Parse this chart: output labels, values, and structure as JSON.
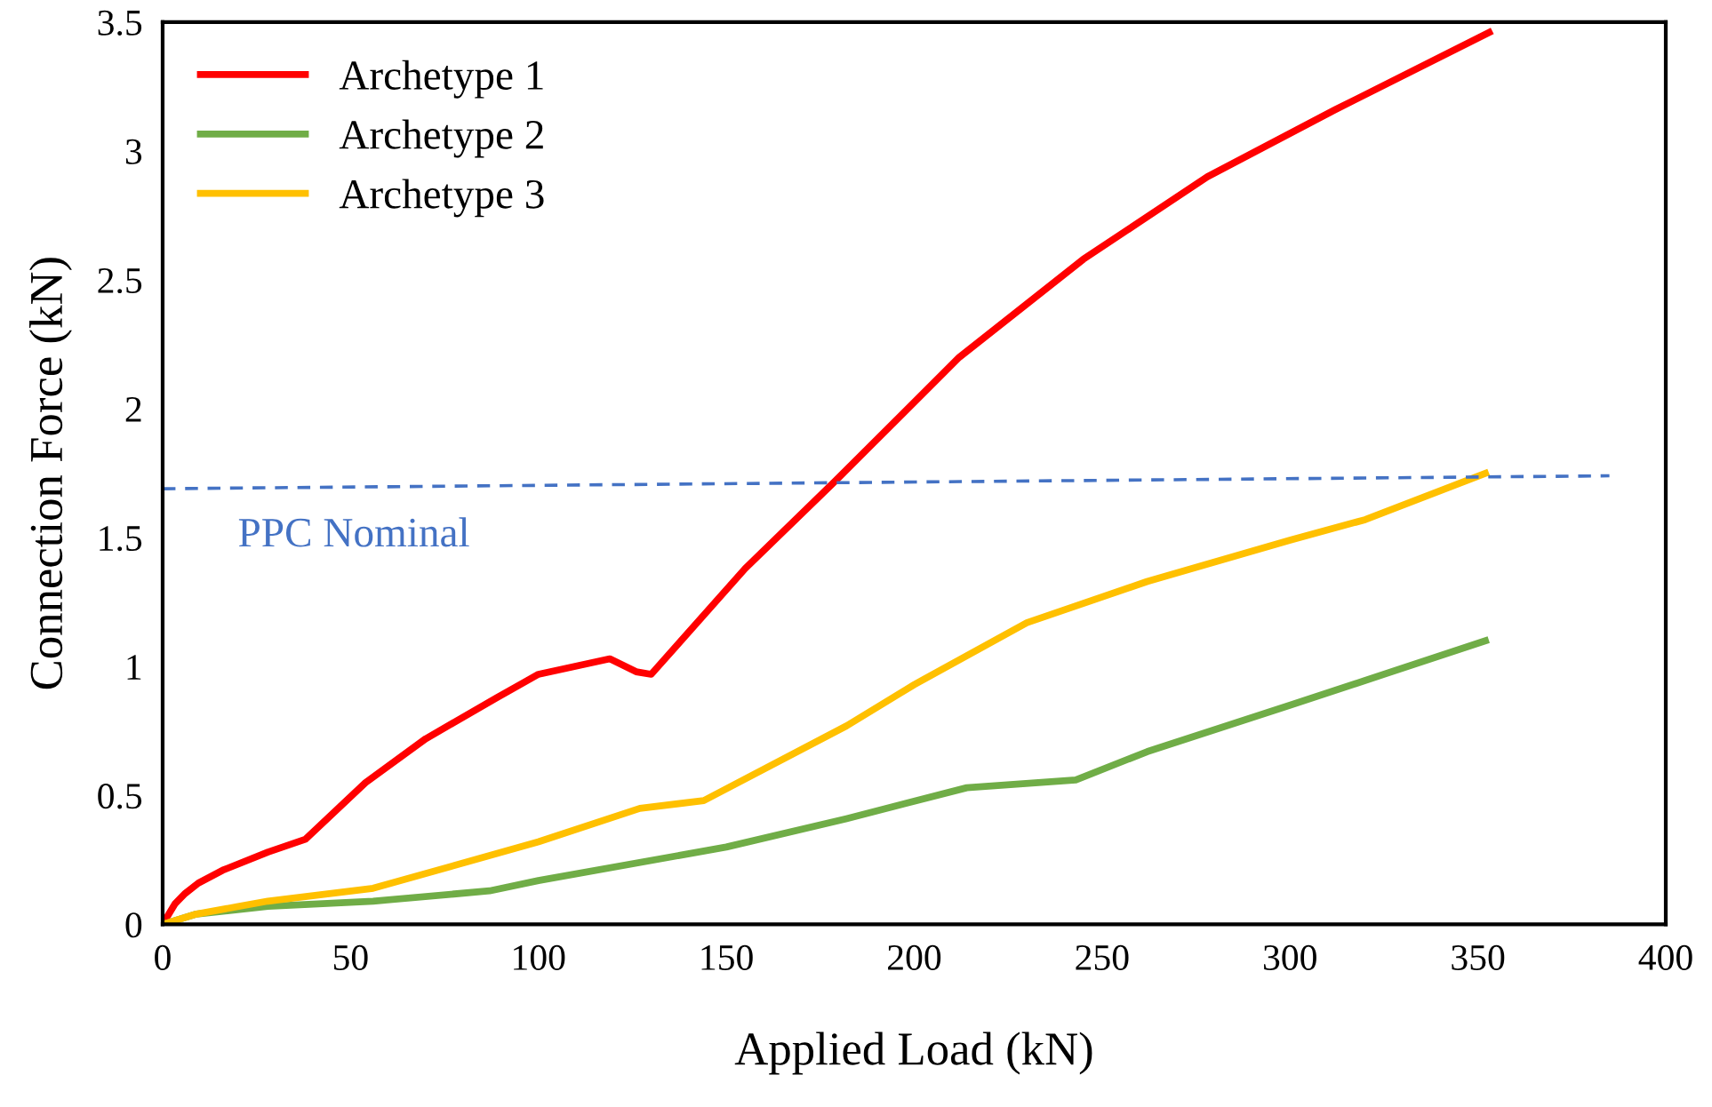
{
  "chart_data": {
    "type": "line",
    "xlabel": "Applied Load (kN)",
    "ylabel": "Connection Force (kN)",
    "xlim": [
      0,
      400
    ],
    "ylim": [
      0,
      3.5
    ],
    "xticks": [
      0,
      50,
      100,
      150,
      200,
      250,
      300,
      350,
      400
    ],
    "yticks": [
      0,
      0.5,
      1,
      1.5,
      2,
      2.5,
      3,
      3.5
    ],
    "grid": false,
    "legend": "top left",
    "marker": "none",
    "line_style": "solid",
    "series": [
      {
        "name": "Archetype 1",
        "color": "#ff0000",
        "x": [
          0,
          3.3,
          6,
          9.5,
          16,
          28,
          38,
          54,
          70,
          89,
          100,
          119,
          126,
          130,
          155,
          179,
          212,
          245,
          278,
          312,
          353
        ],
        "values": [
          0,
          0.08,
          0.12,
          0.16,
          0.21,
          0.28,
          0.33,
          0.55,
          0.72,
          0.88,
          0.97,
          1.03,
          0.98,
          0.97,
          1.38,
          1.72,
          2.2,
          2.58,
          2.9,
          3.16,
          3.46
        ]
      },
      {
        "name": "Archetype 2",
        "color": "#70ad47",
        "x": [
          0,
          9,
          28,
          56,
          87,
          100,
          150,
          182,
          214,
          243,
          262,
          300,
          352
        ],
        "values": [
          0,
          0.04,
          0.07,
          0.09,
          0.13,
          0.17,
          0.3,
          0.41,
          0.53,
          0.56,
          0.67,
          0.85,
          1.1
        ]
      },
      {
        "name": "Archetype 3",
        "color": "#ffc000",
        "x": [
          0,
          9,
          28,
          56,
          100,
          127,
          144,
          182,
          200,
          230,
          262,
          300,
          320,
          352
        ],
        "values": [
          0,
          0.04,
          0.09,
          0.14,
          0.32,
          0.45,
          0.48,
          0.77,
          0.93,
          1.17,
          1.33,
          1.49,
          1.57,
          1.75
        ]
      },
      {
        "color": "#4472c4",
        "line_style": "dashed",
        "x": [
          0,
          385
        ],
        "values": [
          1.69,
          1.74
        ]
      }
    ],
    "annotations": [
      "PPC Nominal"
    ]
  }
}
